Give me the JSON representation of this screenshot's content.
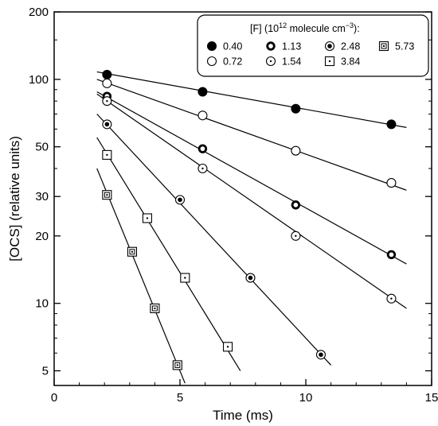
{
  "chart_data": {
    "type": "scatter",
    "xlabel": "Time (ms)",
    "ylabel": "[OCS] (relative units)",
    "xlim": [
      0,
      15
    ],
    "ylim": [
      4.3,
      200
    ],
    "y_scale": "log",
    "x_ticks": [
      0,
      5,
      10,
      15
    ],
    "x_tick_labels": [
      "0",
      "5",
      "10",
      "15"
    ],
    "y_ticks": [
      5,
      10,
      20,
      30,
      50,
      100,
      200
    ],
    "y_tick_labels": [
      "5",
      "10",
      "20",
      "30",
      "50",
      "100",
      "200"
    ],
    "legend": {
      "title_prefix": "[F] (10",
      "title_sup1": "12",
      "title_mid": " molecule cm",
      "title_sup2": "−3",
      "title_suffix": "):",
      "placement": "top-right"
    },
    "series": [
      {
        "name": "0.40",
        "marker": "filled-circle",
        "points": [
          [
            2.1,
            105
          ],
          [
            5.9,
            88
          ],
          [
            9.6,
            74
          ],
          [
            13.4,
            63
          ]
        ],
        "fit": [
          [
            1.7,
            108
          ],
          [
            14.0,
            61
          ]
        ]
      },
      {
        "name": "0.72",
        "marker": "open-circle",
        "points": [
          [
            2.1,
            96
          ],
          [
            5.9,
            69
          ],
          [
            9.6,
            48
          ],
          [
            13.4,
            34.5
          ]
        ],
        "fit": [
          [
            1.7,
            100
          ],
          [
            14.0,
            32
          ]
        ]
      },
      {
        "name": "1.13",
        "marker": "thick-ring",
        "points": [
          [
            2.1,
            84
          ],
          [
            5.9,
            49
          ],
          [
            9.6,
            27.5
          ],
          [
            13.4,
            16.5
          ]
        ],
        "fit": [
          [
            1.7,
            88
          ],
          [
            14.0,
            15
          ]
        ]
      },
      {
        "name": "1.54",
        "marker": "ring-dot",
        "points": [
          [
            2.1,
            80
          ],
          [
            5.9,
            40
          ],
          [
            9.6,
            20
          ],
          [
            13.4,
            10.5
          ]
        ],
        "fit": [
          [
            1.7,
            86
          ],
          [
            14.0,
            9.5
          ]
        ]
      },
      {
        "name": "2.48",
        "marker": "ring-center-dot",
        "points": [
          [
            2.1,
            63
          ],
          [
            5.0,
            29
          ],
          [
            7.8,
            13
          ],
          [
            10.6,
            5.9
          ]
        ],
        "fit": [
          [
            1.7,
            70
          ],
          [
            11.0,
            5.3
          ]
        ]
      },
      {
        "name": "3.84",
        "marker": "square-dot",
        "points": [
          [
            2.1,
            46
          ],
          [
            3.7,
            24
          ],
          [
            5.2,
            13
          ],
          [
            6.9,
            6.4
          ]
        ],
        "fit": [
          [
            1.7,
            55
          ],
          [
            7.4,
            5.0
          ]
        ]
      },
      {
        "name": "5.73",
        "marker": "double-square",
        "points": [
          [
            2.1,
            30.5
          ],
          [
            3.1,
            17
          ],
          [
            4.0,
            9.5
          ],
          [
            4.9,
            5.3
          ]
        ],
        "fit": [
          [
            1.7,
            40
          ],
          [
            5.2,
            4.4
          ]
        ]
      }
    ]
  }
}
